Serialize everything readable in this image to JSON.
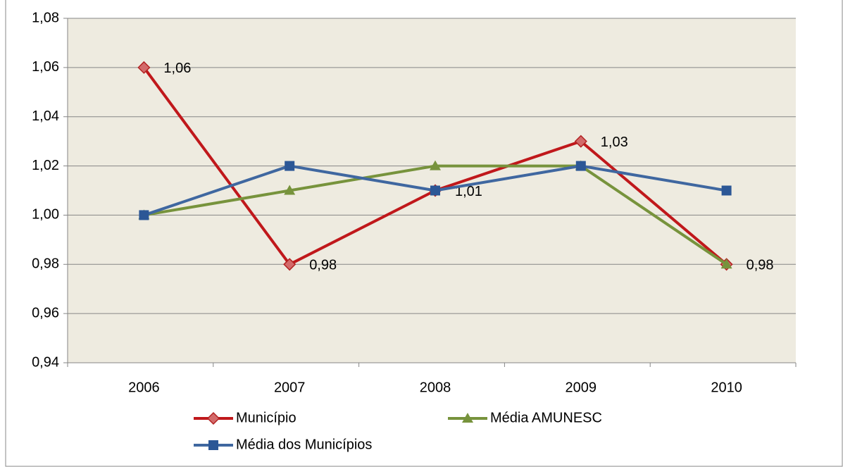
{
  "chart_data": {
    "type": "line",
    "categories": [
      "2006",
      "2007",
      "2008",
      "2009",
      "2010"
    ],
    "series": [
      {
        "name": "Município",
        "color": "#c0181b",
        "marker": "diamond",
        "marker_color": "#d36a6a",
        "values": [
          1.06,
          0.98,
          1.01,
          1.03,
          0.98
        ],
        "value_labels": [
          "1,06",
          "0,98",
          "1,01",
          "1,03",
          "0,98"
        ]
      },
      {
        "name": "Média AMUNESC",
        "color": "#77933c",
        "marker": "triangle",
        "marker_color": "#77933c",
        "values": [
          1.0,
          1.01,
          1.02,
          1.02,
          0.98
        ]
      },
      {
        "name": "Média dos Municípios",
        "color": "#3f67a0",
        "marker": "square",
        "marker_color": "#2c5796",
        "values": [
          1.0,
          1.02,
          1.01,
          1.02,
          1.01
        ]
      }
    ],
    "ylim": [
      0.94,
      1.08
    ],
    "yticks": [
      {
        "value": 0.94,
        "label": "0,94"
      },
      {
        "value": 0.96,
        "label": "0,96"
      },
      {
        "value": 0.98,
        "label": "0,98"
      },
      {
        "value": 1.0,
        "label": "1,00"
      },
      {
        "value": 1.02,
        "label": "1,02"
      },
      {
        "value": 1.04,
        "label": "1,04"
      },
      {
        "value": 1.06,
        "label": "1,06"
      },
      {
        "value": 1.08,
        "label": "1,08"
      }
    ],
    "grid": true
  }
}
